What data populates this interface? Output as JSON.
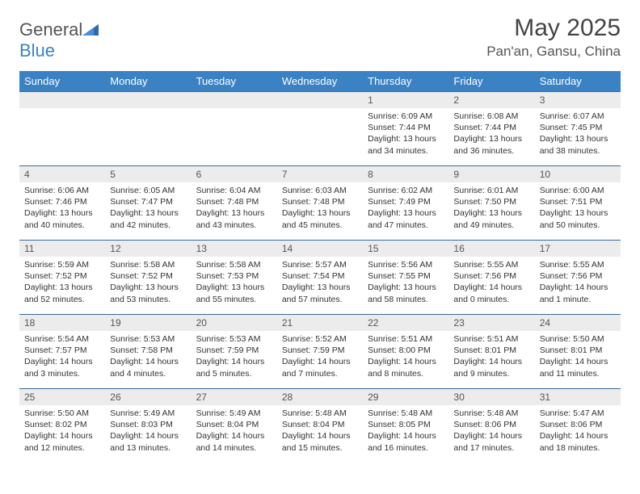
{
  "logo": {
    "word1": "General",
    "word2": "Blue"
  },
  "title": "May 2025",
  "location": "Pan'an, Gansu, China",
  "colors": {
    "header_bg": "#3b82c4",
    "header_text": "#ffffff",
    "row_border": "#3b6a9a",
    "daynum_bg": "#ececec",
    "text": "#333333",
    "title_text": "#444444",
    "logo_gray": "#555555",
    "logo_blue": "#3b82c4",
    "page_bg": "#ffffff"
  },
  "weekdays": [
    "Sunday",
    "Monday",
    "Tuesday",
    "Wednesday",
    "Thursday",
    "Friday",
    "Saturday"
  ],
  "weeks": [
    [
      null,
      null,
      null,
      null,
      {
        "n": "1",
        "sr": "Sunrise: 6:09 AM",
        "ss": "Sunset: 7:44 PM",
        "d1": "Daylight: 13 hours",
        "d2": "and 34 minutes."
      },
      {
        "n": "2",
        "sr": "Sunrise: 6:08 AM",
        "ss": "Sunset: 7:44 PM",
        "d1": "Daylight: 13 hours",
        "d2": "and 36 minutes."
      },
      {
        "n": "3",
        "sr": "Sunrise: 6:07 AM",
        "ss": "Sunset: 7:45 PM",
        "d1": "Daylight: 13 hours",
        "d2": "and 38 minutes."
      }
    ],
    [
      {
        "n": "4",
        "sr": "Sunrise: 6:06 AM",
        "ss": "Sunset: 7:46 PM",
        "d1": "Daylight: 13 hours",
        "d2": "and 40 minutes."
      },
      {
        "n": "5",
        "sr": "Sunrise: 6:05 AM",
        "ss": "Sunset: 7:47 PM",
        "d1": "Daylight: 13 hours",
        "d2": "and 42 minutes."
      },
      {
        "n": "6",
        "sr": "Sunrise: 6:04 AM",
        "ss": "Sunset: 7:48 PM",
        "d1": "Daylight: 13 hours",
        "d2": "and 43 minutes."
      },
      {
        "n": "7",
        "sr": "Sunrise: 6:03 AM",
        "ss": "Sunset: 7:48 PM",
        "d1": "Daylight: 13 hours",
        "d2": "and 45 minutes."
      },
      {
        "n": "8",
        "sr": "Sunrise: 6:02 AM",
        "ss": "Sunset: 7:49 PM",
        "d1": "Daylight: 13 hours",
        "d2": "and 47 minutes."
      },
      {
        "n": "9",
        "sr": "Sunrise: 6:01 AM",
        "ss": "Sunset: 7:50 PM",
        "d1": "Daylight: 13 hours",
        "d2": "and 49 minutes."
      },
      {
        "n": "10",
        "sr": "Sunrise: 6:00 AM",
        "ss": "Sunset: 7:51 PM",
        "d1": "Daylight: 13 hours",
        "d2": "and 50 minutes."
      }
    ],
    [
      {
        "n": "11",
        "sr": "Sunrise: 5:59 AM",
        "ss": "Sunset: 7:52 PM",
        "d1": "Daylight: 13 hours",
        "d2": "and 52 minutes."
      },
      {
        "n": "12",
        "sr": "Sunrise: 5:58 AM",
        "ss": "Sunset: 7:52 PM",
        "d1": "Daylight: 13 hours",
        "d2": "and 53 minutes."
      },
      {
        "n": "13",
        "sr": "Sunrise: 5:58 AM",
        "ss": "Sunset: 7:53 PM",
        "d1": "Daylight: 13 hours",
        "d2": "and 55 minutes."
      },
      {
        "n": "14",
        "sr": "Sunrise: 5:57 AM",
        "ss": "Sunset: 7:54 PM",
        "d1": "Daylight: 13 hours",
        "d2": "and 57 minutes."
      },
      {
        "n": "15",
        "sr": "Sunrise: 5:56 AM",
        "ss": "Sunset: 7:55 PM",
        "d1": "Daylight: 13 hours",
        "d2": "and 58 minutes."
      },
      {
        "n": "16",
        "sr": "Sunrise: 5:55 AM",
        "ss": "Sunset: 7:56 PM",
        "d1": "Daylight: 14 hours",
        "d2": "and 0 minutes."
      },
      {
        "n": "17",
        "sr": "Sunrise: 5:55 AM",
        "ss": "Sunset: 7:56 PM",
        "d1": "Daylight: 14 hours",
        "d2": "and 1 minute."
      }
    ],
    [
      {
        "n": "18",
        "sr": "Sunrise: 5:54 AM",
        "ss": "Sunset: 7:57 PM",
        "d1": "Daylight: 14 hours",
        "d2": "and 3 minutes."
      },
      {
        "n": "19",
        "sr": "Sunrise: 5:53 AM",
        "ss": "Sunset: 7:58 PM",
        "d1": "Daylight: 14 hours",
        "d2": "and 4 minutes."
      },
      {
        "n": "20",
        "sr": "Sunrise: 5:53 AM",
        "ss": "Sunset: 7:59 PM",
        "d1": "Daylight: 14 hours",
        "d2": "and 5 minutes."
      },
      {
        "n": "21",
        "sr": "Sunrise: 5:52 AM",
        "ss": "Sunset: 7:59 PM",
        "d1": "Daylight: 14 hours",
        "d2": "and 7 minutes."
      },
      {
        "n": "22",
        "sr": "Sunrise: 5:51 AM",
        "ss": "Sunset: 8:00 PM",
        "d1": "Daylight: 14 hours",
        "d2": "and 8 minutes."
      },
      {
        "n": "23",
        "sr": "Sunrise: 5:51 AM",
        "ss": "Sunset: 8:01 PM",
        "d1": "Daylight: 14 hours",
        "d2": "and 9 minutes."
      },
      {
        "n": "24",
        "sr": "Sunrise: 5:50 AM",
        "ss": "Sunset: 8:01 PM",
        "d1": "Daylight: 14 hours",
        "d2": "and 11 minutes."
      }
    ],
    [
      {
        "n": "25",
        "sr": "Sunrise: 5:50 AM",
        "ss": "Sunset: 8:02 PM",
        "d1": "Daylight: 14 hours",
        "d2": "and 12 minutes."
      },
      {
        "n": "26",
        "sr": "Sunrise: 5:49 AM",
        "ss": "Sunset: 8:03 PM",
        "d1": "Daylight: 14 hours",
        "d2": "and 13 minutes."
      },
      {
        "n": "27",
        "sr": "Sunrise: 5:49 AM",
        "ss": "Sunset: 8:04 PM",
        "d1": "Daylight: 14 hours",
        "d2": "and 14 minutes."
      },
      {
        "n": "28",
        "sr": "Sunrise: 5:48 AM",
        "ss": "Sunset: 8:04 PM",
        "d1": "Daylight: 14 hours",
        "d2": "and 15 minutes."
      },
      {
        "n": "29",
        "sr": "Sunrise: 5:48 AM",
        "ss": "Sunset: 8:05 PM",
        "d1": "Daylight: 14 hours",
        "d2": "and 16 minutes."
      },
      {
        "n": "30",
        "sr": "Sunrise: 5:48 AM",
        "ss": "Sunset: 8:06 PM",
        "d1": "Daylight: 14 hours",
        "d2": "and 17 minutes."
      },
      {
        "n": "31",
        "sr": "Sunrise: 5:47 AM",
        "ss": "Sunset: 8:06 PM",
        "d1": "Daylight: 14 hours",
        "d2": "and 18 minutes."
      }
    ]
  ]
}
